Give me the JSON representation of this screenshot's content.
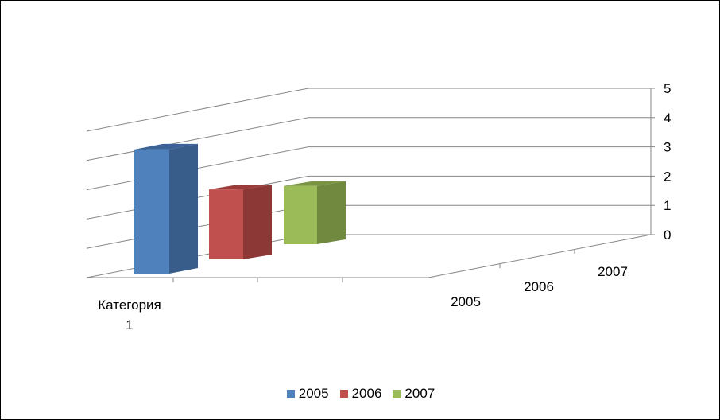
{
  "chart_data": {
    "type": "bar",
    "categories": [
      "Категория 1"
    ],
    "series": [
      {
        "name": "2005",
        "values": [
          4.3
        ],
        "color": "#4F81BD",
        "side_color": "#385D8A",
        "top_color": "#3B6396"
      },
      {
        "name": "2006",
        "values": [
          2.4
        ],
        "color": "#C0504D",
        "side_color": "#8C3836",
        "top_color": "#9A3C39"
      },
      {
        "name": "2007",
        "values": [
          2.0
        ],
        "color": "#9BBB59",
        "side_color": "#71893F",
        "top_color": "#7A9443"
      }
    ],
    "y_ticks": [
      "0",
      "1",
      "2",
      "3",
      "4",
      "5"
    ],
    "depth_labels": [
      "2005",
      "2006",
      "2007"
    ],
    "ylim": [
      0,
      5
    ],
    "grid": true,
    "legend": "bottom",
    "chart_style": "3d-column"
  }
}
